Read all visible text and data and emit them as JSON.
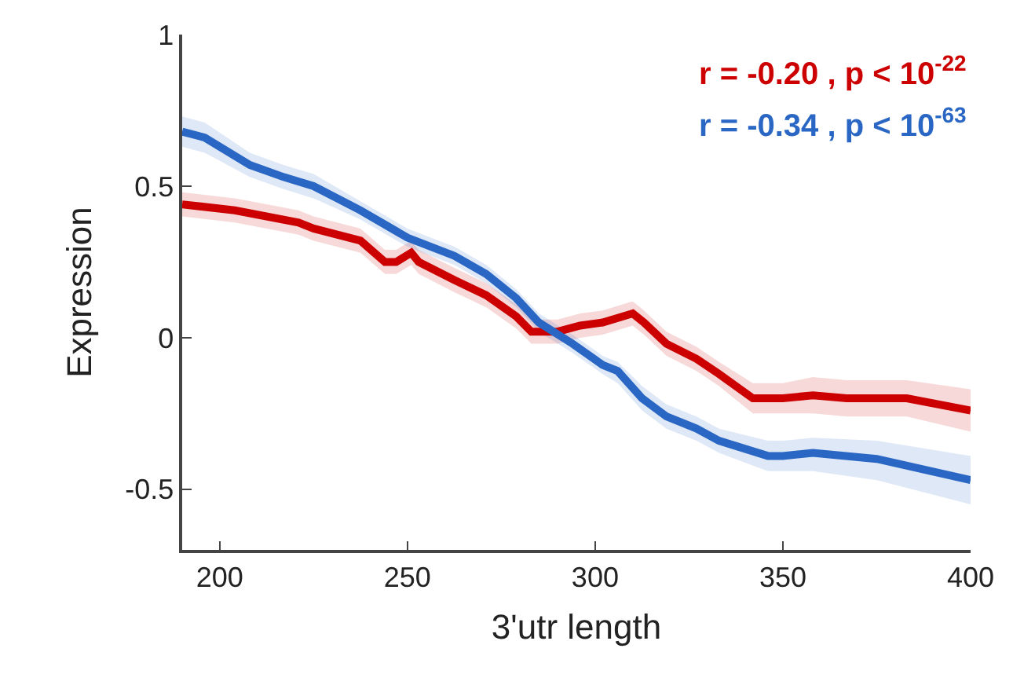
{
  "chart_data": {
    "type": "line",
    "xlabel": "3'utr length",
    "ylabel": "Expression",
    "xlim": [
      190,
      400
    ],
    "xticks": [
      200,
      250,
      300,
      350,
      400
    ],
    "ylim": [
      -0.7,
      1
    ],
    "yticks": [
      -0.5,
      0,
      0.5,
      1
    ],
    "grid": false,
    "marker": "none",
    "line_style": "solid",
    "annotations": [
      "r = -0.20 , p < 10$^{-22}$",
      "r = -0.34 , p < 10$^{-63}$"
    ],
    "series": [
      {
        "color": "#cc0000",
        "x": [
          190,
          204,
          221,
          225,
          237.5,
          244,
          247,
          251,
          253,
          262.5,
          271,
          279,
          283,
          290,
          296,
          302,
          310,
          313,
          319,
          327,
          333,
          342,
          350,
          358,
          367,
          383,
          400
        ],
        "values": [
          0.44,
          0.42,
          0.38,
          0.36,
          0.32,
          0.25,
          0.25,
          0.28,
          0.25,
          0.19,
          0.14,
          0.07,
          0.02,
          0.02,
          0.04,
          0.05,
          0.08,
          0.05,
          -0.02,
          -0.07,
          -0.12,
          -0.2,
          -0.2,
          -0.19,
          -0.2,
          -0.2,
          -0.24
        ],
        "lower": [
          0.4,
          0.38,
          0.34,
          0.32,
          0.28,
          0.21,
          0.21,
          0.24,
          0.21,
          0.15,
          0.1,
          0.03,
          -0.02,
          -0.02,
          0.0,
          0.01,
          0.04,
          0.01,
          -0.06,
          -0.11,
          -0.16,
          -0.25,
          -0.25,
          -0.25,
          -0.26,
          -0.26,
          -0.31
        ],
        "upper": [
          0.48,
          0.46,
          0.42,
          0.4,
          0.36,
          0.29,
          0.29,
          0.32,
          0.29,
          0.23,
          0.18,
          0.11,
          0.06,
          0.06,
          0.08,
          0.09,
          0.12,
          0.09,
          0.02,
          -0.03,
          -0.08,
          -0.15,
          -0.15,
          -0.13,
          -0.14,
          -0.14,
          -0.17
        ]
      },
      {
        "color": "#2a67c4",
        "x": [
          190,
          196,
          208,
          217,
          225,
          237.5,
          250,
          262.5,
          271,
          279,
          285,
          294,
          302,
          306,
          312.5,
          319,
          327,
          333,
          346,
          350,
          358,
          375,
          400
        ],
        "values": [
          0.68,
          0.66,
          0.57,
          0.53,
          0.5,
          0.42,
          0.33,
          0.27,
          0.21,
          0.13,
          0.05,
          -0.02,
          -0.09,
          -0.11,
          -0.2,
          -0.26,
          -0.3,
          -0.34,
          -0.39,
          -0.39,
          -0.38,
          -0.4,
          -0.47
        ],
        "lower": [
          0.63,
          0.61,
          0.53,
          0.49,
          0.46,
          0.39,
          0.3,
          0.24,
          0.18,
          0.1,
          0.02,
          -0.05,
          -0.12,
          -0.15,
          -0.24,
          -0.3,
          -0.34,
          -0.38,
          -0.44,
          -0.44,
          -0.44,
          -0.47,
          -0.55
        ],
        "upper": [
          0.73,
          0.71,
          0.61,
          0.57,
          0.54,
          0.45,
          0.36,
          0.3,
          0.24,
          0.16,
          0.08,
          0.01,
          -0.06,
          -0.08,
          -0.16,
          -0.22,
          -0.26,
          -0.3,
          -0.34,
          -0.34,
          -0.33,
          -0.34,
          -0.39
        ]
      }
    ]
  }
}
